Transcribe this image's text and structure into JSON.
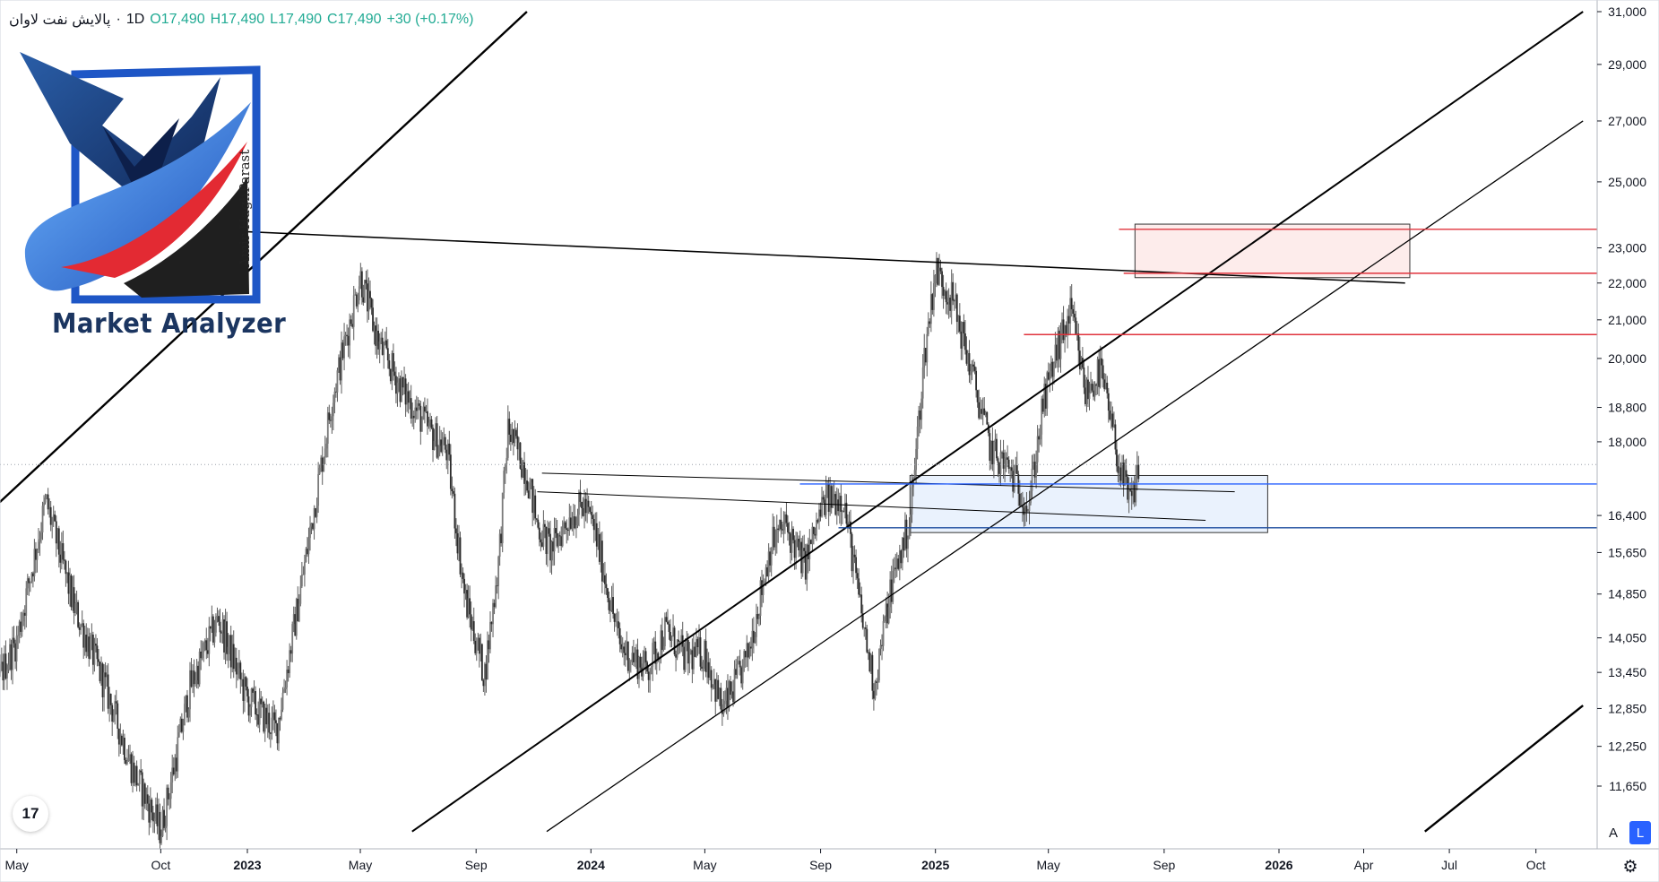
{
  "legend": {
    "symbol": "پالایش نفت لاوان",
    "interval": "1D",
    "open": "O17,490",
    "high": "H17,490",
    "low": "L17,490",
    "close": "C17,490",
    "change": "+30 (+0.17%)"
  },
  "watermark": {
    "brand": "Market Analyzer",
    "author": "Amir HaghParast"
  },
  "toolbar": {
    "tv_logo": "17",
    "auto_label": "A",
    "log_label": "L",
    "settings_icon": "gear-icon"
  },
  "chart_data": {
    "type": "candlestick",
    "symbol": "پالایش نفت لاوان",
    "interval": "1D",
    "last_price": 17490,
    "y_scale": "log",
    "ylim": [
      11000,
      31000
    ],
    "y_ticks": [
      {
        "value": 31000,
        "label": "31,000"
      },
      {
        "value": 29000,
        "label": "29,000"
      },
      {
        "value": 27000,
        "label": "27,000"
      },
      {
        "value": 25000,
        "label": "25,000"
      },
      {
        "value": 23000,
        "label": "23,000"
      },
      {
        "value": 22000,
        "label": "22,000"
      },
      {
        "value": 21000,
        "label": "21,000"
      },
      {
        "value": 20000,
        "label": "20,000"
      },
      {
        "value": 18800,
        "label": "18,800"
      },
      {
        "value": 18000,
        "label": "18,000"
      },
      {
        "value": 16400,
        "label": "16,400"
      },
      {
        "value": 15650,
        "label": "15,650"
      },
      {
        "value": 14850,
        "label": "14,850"
      },
      {
        "value": 14050,
        "label": "14,050"
      },
      {
        "value": 13450,
        "label": "13,450"
      },
      {
        "value": 12850,
        "label": "12,850"
      },
      {
        "value": 12250,
        "label": "12,250"
      },
      {
        "value": 11650,
        "label": "11,650"
      }
    ],
    "x_ticks": [
      {
        "date": "2022-05-01",
        "label": "May",
        "bold": false
      },
      {
        "date": "2022-10-01",
        "label": "Oct",
        "bold": false
      },
      {
        "date": "2023-01-01",
        "label": "2023",
        "bold": true
      },
      {
        "date": "2023-05-01",
        "label": "May",
        "bold": false
      },
      {
        "date": "2023-09-01",
        "label": "Sep",
        "bold": false
      },
      {
        "date": "2024-01-01",
        "label": "2024",
        "bold": true
      },
      {
        "date": "2024-05-01",
        "label": "May",
        "bold": false
      },
      {
        "date": "2024-09-01",
        "label": "Sep",
        "bold": false
      },
      {
        "date": "2025-01-01",
        "label": "2025",
        "bold": true
      },
      {
        "date": "2025-05-01",
        "label": "May",
        "bold": false
      },
      {
        "date": "2025-09-01",
        "label": "Sep",
        "bold": false
      },
      {
        "date": "2026-01-01",
        "label": "2026",
        "bold": true
      },
      {
        "date": "2026-04-01",
        "label": "Apr",
        "bold": false
      },
      {
        "date": "2026-07-01",
        "label": "Jul",
        "bold": false
      },
      {
        "date": "2026-10-01",
        "label": "Oct",
        "bold": false
      }
    ],
    "price_path": [
      [
        "2022-03-01",
        11400
      ],
      [
        "2022-04-01",
        13000
      ],
      [
        "2022-05-01",
        14000
      ],
      [
        "2022-06-01",
        16700
      ],
      [
        "2022-07-01",
        14600
      ],
      [
        "2022-08-01",
        13300
      ],
      [
        "2022-09-01",
        11900
      ],
      [
        "2022-10-01",
        11000
      ],
      [
        "2022-11-01",
        13200
      ],
      [
        "2022-12-01",
        14400
      ],
      [
        "2023-01-01",
        13000
      ],
      [
        "2023-02-01",
        12500
      ],
      [
        "2023-03-01",
        15200
      ],
      [
        "2023-04-01",
        19000
      ],
      [
        "2023-05-01",
        22200
      ],
      [
        "2023-05-20",
        20400
      ],
      [
        "2023-06-15",
        19200
      ],
      [
        "2023-07-15",
        18200
      ],
      [
        "2023-08-01",
        17800
      ],
      [
        "2023-08-20",
        14800
      ],
      [
        "2023-09-10",
        13400
      ],
      [
        "2023-09-25",
        15500
      ],
      [
        "2023-10-05",
        18300
      ],
      [
        "2023-10-25",
        17300
      ],
      [
        "2023-11-05",
        16200
      ],
      [
        "2023-11-20",
        15700
      ],
      [
        "2023-12-10",
        16400
      ],
      [
        "2023-12-25",
        16600
      ],
      [
        "2024-01-05",
        16100
      ],
      [
        "2024-02-01",
        13900
      ],
      [
        "2024-03-01",
        13500
      ],
      [
        "2024-03-20",
        14200
      ],
      [
        "2024-04-10",
        13700
      ],
      [
        "2024-05-01",
        13800
      ],
      [
        "2024-05-20",
        12800
      ],
      [
        "2024-06-15",
        13700
      ],
      [
        "2024-07-10",
        15800
      ],
      [
        "2024-07-25",
        16200
      ],
      [
        "2024-08-15",
        15400
      ],
      [
        "2024-09-05",
        16700
      ],
      [
        "2024-09-25",
        16800
      ],
      [
        "2024-10-15",
        14400
      ],
      [
        "2024-10-28",
        13200
      ],
      [
        "2024-11-15",
        15000
      ],
      [
        "2024-12-05",
        16300
      ],
      [
        "2024-12-20",
        20000
      ],
      [
        "2025-01-01",
        22400
      ],
      [
        "2025-01-20",
        21500
      ],
      [
        "2025-02-10",
        19500
      ],
      [
        "2025-03-01",
        17800
      ],
      [
        "2025-03-20",
        17400
      ],
      [
        "2025-04-10",
        16600
      ],
      [
        "2025-04-25",
        18800
      ],
      [
        "2025-05-10",
        20200
      ],
      [
        "2025-05-25",
        21200
      ],
      [
        "2025-06-10",
        19100
      ],
      [
        "2025-06-25",
        19700
      ],
      [
        "2025-07-05",
        18600
      ],
      [
        "2025-07-18",
        17200
      ],
      [
        "2025-07-28",
        16600
      ],
      [
        "2025-08-05",
        17490
      ]
    ],
    "zones": [
      {
        "name": "resistance-zone",
        "from": "2025-08-01",
        "to": "2026-05-20",
        "top": 23700,
        "bottom": 22150,
        "fill": "#fdeceb",
        "stroke": "#333333"
      },
      {
        "name": "support-zone",
        "from": "2024-12-05",
        "to": "2025-12-20",
        "top": 17250,
        "bottom": 16050,
        "fill": "#eaf2fd",
        "stroke": "#333333"
      }
    ],
    "horizontal_levels": [
      {
        "name": "level-23546",
        "value": 23546,
        "label": "23,546",
        "from": "2025-07-15",
        "color": "#e0333c"
      },
      {
        "name": "level-22273",
        "value": 22273,
        "label": "22,273",
        "from": "2025-07-20",
        "color": "#e0333c"
      },
      {
        "name": "level-20613",
        "value": 20613,
        "label": "20,613",
        "from": "2025-04-05",
        "color": "#e0333c"
      },
      {
        "name": "level-17066",
        "value": 17066,
        "label": "17,066",
        "from": "2024-08-10",
        "color": "#2962ff"
      },
      {
        "name": "level-16147",
        "value": 16147,
        "label": "16,147",
        "from": "2024-09-20",
        "color": "#1f4e9f"
      }
    ],
    "current_price_label": {
      "value": 17490,
      "label": "17,490",
      "color": "#4a9b6e"
    },
    "trend_lines": [
      {
        "name": "channel-upper-left",
        "from": [
          "2022-01-25",
          15300
        ],
        "to": [
          "2023-10-25",
          31000
        ],
        "width": 2.4
      },
      {
        "name": "long-trendline-upper",
        "from": [
          "2023-06-25",
          11000
        ],
        "to": [
          "2026-11-20",
          31000
        ],
        "width": 2.0
      },
      {
        "name": "long-trendline-lower",
        "from": [
          "2023-11-15",
          11000
        ],
        "to": [
          "2026-11-20",
          27000
        ],
        "width": 1.3
      },
      {
        "name": "channel-lower-right",
        "from": [
          "2026-06-05",
          11000
        ],
        "to": [
          "2026-11-20",
          12900
        ],
        "width": 2.4
      },
      {
        "name": "descending-resistance",
        "from": [
          "2022-12-10",
          23500
        ],
        "to": [
          "2026-05-15",
          22000
        ],
        "width": 1.6
      },
      {
        "name": "range-line-upper",
        "from": [
          "2023-11-10",
          17300
        ],
        "to": [
          "2025-11-15",
          16900
        ],
        "width": 1.0
      },
      {
        "name": "range-line-lower",
        "from": [
          "2023-11-05",
          16900
        ],
        "to": [
          "2025-10-15",
          16300
        ],
        "width": 1.0
      }
    ]
  }
}
